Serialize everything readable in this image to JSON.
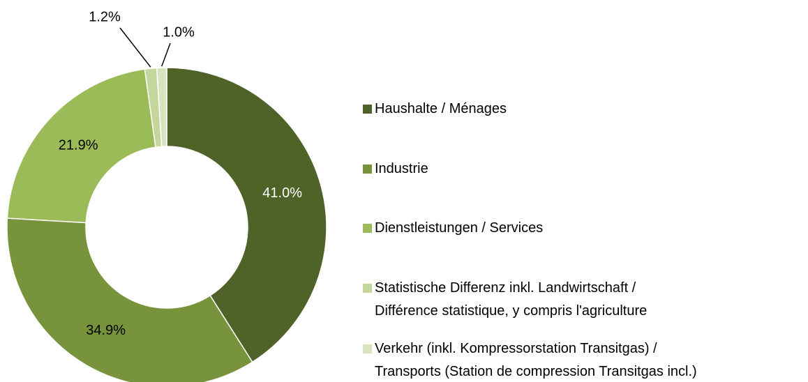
{
  "chart_data": {
    "type": "donut",
    "categories": [
      "Haushalte / Ménages",
      "Industrie",
      "Dienstleistungen / Services",
      "Statistische Differenz inkl. Landwirtschaft /\nDifférence statistique, y compris l'agriculture",
      "Verkehr (inkl. Kompressorstation Transitgas) /\nTransports (Station de compression Transitgas incl.)"
    ],
    "values": [
      41.0,
      34.9,
      21.9,
      1.2,
      1.0
    ],
    "value_labels": [
      "41.0%",
      "34.9%",
      "21.9%",
      "1.2%",
      "1.0%"
    ],
    "colors": [
      "#4f6228",
      "#77933c",
      "#9bbb59",
      "#c3d69b",
      "#d7e4bd"
    ],
    "legend": "right"
  }
}
